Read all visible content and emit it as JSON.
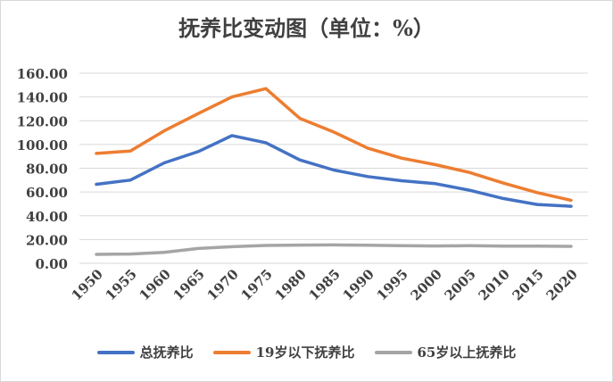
{
  "chart_data": {
    "type": "line",
    "title": "抚养比变动图（单位：%）",
    "xlabel": "",
    "ylabel": "",
    "x": [
      "1950",
      "1955",
      "1960",
      "1965",
      "1970",
      "1975",
      "1980",
      "1985",
      "1990",
      "1995",
      "2000",
      "2005",
      "2010",
      "2015",
      "2020"
    ],
    "ylim": [
      0,
      160
    ],
    "yticks": [
      "0.00",
      "20.00",
      "40.00",
      "60.00",
      "80.00",
      "100.00",
      "120.00",
      "140.00",
      "160.00"
    ],
    "grid": true,
    "legend_position": "bottom",
    "series": [
      {
        "name": "总抚养比",
        "color": "#4472c4",
        "values": [
          66.5,
          70.0,
          84.5,
          94.0,
          107.5,
          101.5,
          87.0,
          78.5,
          73.0,
          69.5,
          67.0,
          61.5,
          54.5,
          49.5,
          48.0
        ]
      },
      {
        "name": "19岁以下抚养比",
        "color": "#ed7d31",
        "values": [
          92.5,
          94.5,
          111.5,
          126.0,
          140.0,
          147.0,
          122.0,
          110.5,
          97.0,
          88.5,
          83.0,
          76.5,
          67.5,
          59.5,
          53.0
        ]
      },
      {
        "name": "65岁以上抚养比",
        "color": "#a5a5a5",
        "values": [
          7.5,
          7.8,
          9.2,
          12.5,
          14.0,
          15.0,
          15.3,
          15.5,
          15.2,
          14.8,
          14.6,
          14.8,
          14.5,
          14.4,
          14.3
        ]
      }
    ]
  }
}
